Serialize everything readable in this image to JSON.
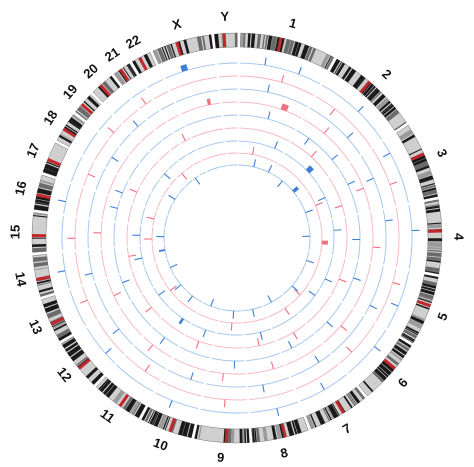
{
  "chart_data": {
    "type": "circos",
    "chromosomes": [
      {
        "name": "1",
        "size": 249
      },
      {
        "name": "2",
        "size": 243
      },
      {
        "name": "3",
        "size": 198
      },
      {
        "name": "4",
        "size": 191
      },
      {
        "name": "5",
        "size": 181
      },
      {
        "name": "6",
        "size": 171
      },
      {
        "name": "7",
        "size": 159
      },
      {
        "name": "8",
        "size": 146
      },
      {
        "name": "9",
        "size": 141
      },
      {
        "name": "10",
        "size": 136
      },
      {
        "name": "11",
        "size": 135
      },
      {
        "name": "12",
        "size": 134
      },
      {
        "name": "13",
        "size": 115
      },
      {
        "name": "14",
        "size": 107
      },
      {
        "name": "15",
        "size": 102
      },
      {
        "name": "16",
        "size": 90
      },
      {
        "name": "17",
        "size": 81
      },
      {
        "name": "18",
        "size": 78
      },
      {
        "name": "19",
        "size": 59
      },
      {
        "name": "20",
        "size": 63
      },
      {
        "name": "21",
        "size": 48
      },
      {
        "name": "22",
        "size": 51
      },
      {
        "name": "X",
        "size": 155
      },
      {
        "name": "Y",
        "size": 59
      }
    ],
    "tracks": [
      {
        "index": 1,
        "color": "#3f7fd6",
        "events": [
          {
            "chr": "1",
            "pos": 0.3,
            "len": 0.0,
            "dir": "up"
          },
          {
            "chr": "1",
            "pos": 0.72,
            "len": 0.0,
            "dir": "up"
          },
          {
            "chr": "2",
            "pos": 0.55,
            "len": 0.0,
            "dir": "up"
          },
          {
            "chr": "3",
            "pos": 0.2,
            "len": 0.0,
            "dir": "down"
          },
          {
            "chr": "4",
            "pos": 0.4,
            "len": 0.0,
            "dir": "up"
          },
          {
            "chr": "5",
            "pos": 0.6,
            "len": 0.0,
            "dir": "down"
          },
          {
            "chr": "6",
            "pos": 0.35,
            "len": 0.0,
            "dir": "up"
          },
          {
            "chr": "7",
            "pos": 0.5,
            "len": 0.0,
            "dir": "down"
          },
          {
            "chr": "8",
            "pos": 0.45,
            "len": 0.0,
            "dir": "up"
          },
          {
            "chr": "10",
            "pos": 0.6,
            "len": 0.0,
            "dir": "up"
          },
          {
            "chr": "12",
            "pos": 0.3,
            "len": 0.0,
            "dir": "down"
          },
          {
            "chr": "14",
            "pos": 0.5,
            "len": 0.0,
            "dir": "up"
          },
          {
            "chr": "16",
            "pos": 0.4,
            "len": 0.0,
            "dir": "up"
          },
          {
            "chr": "X",
            "pos": 0.35,
            "len": 0.12,
            "dir": "up"
          }
        ]
      },
      {
        "index": 2,
        "color": "#f07080",
        "events": [
          {
            "chr": "1",
            "pos": 0.55,
            "len": 0.0,
            "dir": "up"
          },
          {
            "chr": "2",
            "pos": 0.3,
            "len": 0.0,
            "dir": "down"
          },
          {
            "chr": "3",
            "pos": 0.65,
            "len": 0.0,
            "dir": "up"
          },
          {
            "chr": "5",
            "pos": 0.25,
            "len": 0.0,
            "dir": "up"
          },
          {
            "chr": "6",
            "pos": 0.7,
            "len": 0.0,
            "dir": "down"
          },
          {
            "chr": "9",
            "pos": 0.5,
            "len": 0.0,
            "dir": "up"
          },
          {
            "chr": "11",
            "pos": 0.4,
            "len": 0.0,
            "dir": "down"
          },
          {
            "chr": "13",
            "pos": 0.6,
            "len": 0.0,
            "dir": "up"
          },
          {
            "chr": "15",
            "pos": 0.35,
            "len": 0.0,
            "dir": "up"
          },
          {
            "chr": "17",
            "pos": 0.5,
            "len": 0.0,
            "dir": "down"
          },
          {
            "chr": "19",
            "pos": 0.4,
            "len": 0.0,
            "dir": "up"
          },
          {
            "chr": "21",
            "pos": 0.5,
            "len": 0.0,
            "dir": "up"
          }
        ]
      },
      {
        "index": 3,
        "color": "#3f7fd6",
        "events": [
          {
            "chr": "1",
            "pos": 0.4,
            "len": 0.0,
            "dir": "up"
          },
          {
            "chr": "2",
            "pos": 0.7,
            "len": 0.0,
            "dir": "up"
          },
          {
            "chr": "3",
            "pos": 0.45,
            "len": 0.0,
            "dir": "down"
          },
          {
            "chr": "4",
            "pos": 0.2,
            "len": 0.0,
            "dir": "up"
          },
          {
            "chr": "5",
            "pos": 0.8,
            "len": 0.0,
            "dir": "up"
          },
          {
            "chr": "7",
            "pos": 0.3,
            "len": 0.0,
            "dir": "down"
          },
          {
            "chr": "8",
            "pos": 0.65,
            "len": 0.0,
            "dir": "up"
          },
          {
            "chr": "10",
            "pos": 0.35,
            "len": 0.0,
            "dir": "down"
          },
          {
            "chr": "12",
            "pos": 0.55,
            "len": 0.0,
            "dir": "up"
          },
          {
            "chr": "14",
            "pos": 0.25,
            "len": 0.0,
            "dir": "up"
          },
          {
            "chr": "18",
            "pos": 0.5,
            "len": 0.0,
            "dir": "down"
          },
          {
            "chr": "20",
            "pos": 0.45,
            "len": 0.0,
            "dir": "up"
          }
        ]
      },
      {
        "index": 4,
        "color": "#f07080",
        "events": [
          {
            "chr": "1",
            "pos": 0.65,
            "len": 0.1,
            "dir": "up"
          },
          {
            "chr": "2",
            "pos": 0.4,
            "len": 0.0,
            "dir": "up"
          },
          {
            "chr": "3",
            "pos": 0.55,
            "len": 0.0,
            "dir": "down"
          },
          {
            "chr": "4",
            "pos": 0.7,
            "len": 0.0,
            "dir": "up"
          },
          {
            "chr": "6",
            "pos": 0.45,
            "len": 0.0,
            "dir": "up"
          },
          {
            "chr": "8",
            "pos": 0.3,
            "len": 0.0,
            "dir": "down"
          },
          {
            "chr": "9",
            "pos": 0.6,
            "len": 0.0,
            "dir": "up"
          },
          {
            "chr": "11",
            "pos": 0.65,
            "len": 0.0,
            "dir": "up"
          },
          {
            "chr": "13",
            "pos": 0.4,
            "len": 0.0,
            "dir": "down"
          },
          {
            "chr": "15",
            "pos": 0.55,
            "len": 0.0,
            "dir": "up"
          },
          {
            "chr": "X",
            "pos": 0.7,
            "len": 0.08,
            "dir": "up"
          }
        ]
      },
      {
        "index": 5,
        "color": "#3f7fd6",
        "events": [
          {
            "chr": "1",
            "pos": 0.5,
            "len": 0.0,
            "dir": "up"
          },
          {
            "chr": "2",
            "pos": 0.25,
            "len": 0.0,
            "dir": "down"
          },
          {
            "chr": "2",
            "pos": 0.8,
            "len": 0.0,
            "dir": "up"
          },
          {
            "chr": "3",
            "pos": 0.35,
            "len": 0.0,
            "dir": "up"
          },
          {
            "chr": "4",
            "pos": 0.55,
            "len": 0.0,
            "dir": "down"
          },
          {
            "chr": "5",
            "pos": 0.4,
            "len": 0.0,
            "dir": "up"
          },
          {
            "chr": "6",
            "pos": 0.6,
            "len": 0.0,
            "dir": "up"
          },
          {
            "chr": "7",
            "pos": 0.7,
            "len": 0.0,
            "dir": "down"
          },
          {
            "chr": "9",
            "pos": 0.3,
            "len": 0.0,
            "dir": "up"
          },
          {
            "chr": "11",
            "pos": 0.5,
            "len": 0.0,
            "dir": "up"
          },
          {
            "chr": "13",
            "pos": 0.7,
            "len": 0.0,
            "dir": "down"
          },
          {
            "chr": "16",
            "pos": 0.6,
            "len": 0.0,
            "dir": "up"
          },
          {
            "chr": "17",
            "pos": 0.3,
            "len": 0.0,
            "dir": "up"
          }
        ]
      },
      {
        "index": 6,
        "color": "#f07080",
        "events": [
          {
            "chr": "2",
            "pos": 0.5,
            "len": 0.0,
            "dir": "up"
          },
          {
            "chr": "3",
            "pos": 0.75,
            "len": 0.0,
            "dir": "down"
          },
          {
            "chr": "5",
            "pos": 0.55,
            "len": 0.0,
            "dir": "up"
          },
          {
            "chr": "7",
            "pos": 0.45,
            "len": 0.0,
            "dir": "up"
          },
          {
            "chr": "8",
            "pos": 0.55,
            "len": 0.0,
            "dir": "down"
          },
          {
            "chr": "10",
            "pos": 0.5,
            "len": 0.0,
            "dir": "up"
          },
          {
            "chr": "12",
            "pos": 0.45,
            "len": 0.0,
            "dir": "up"
          },
          {
            "chr": "14",
            "pos": 0.6,
            "len": 0.0,
            "dir": "down"
          },
          {
            "chr": "17",
            "pos": 0.65,
            "len": 0.0,
            "dir": "up"
          },
          {
            "chr": "22",
            "pos": 0.5,
            "len": 0.0,
            "dir": "up"
          }
        ]
      },
      {
        "index": 7,
        "color": "#3f7fd6",
        "events": [
          {
            "chr": "1",
            "pos": 0.8,
            "len": 0.0,
            "dir": "up"
          },
          {
            "chr": "2",
            "pos": 0.6,
            "len": 0.12,
            "dir": "up"
          },
          {
            "chr": "3",
            "pos": 0.4,
            "len": 0.0,
            "dir": "down"
          },
          {
            "chr": "4",
            "pos": 0.3,
            "len": 0.0,
            "dir": "up"
          },
          {
            "chr": "5",
            "pos": 0.7,
            "len": 0.0,
            "dir": "up"
          },
          {
            "chr": "6",
            "pos": 0.25,
            "len": 0.0,
            "dir": "down"
          },
          {
            "chr": "8",
            "pos": 0.4,
            "len": 0.0,
            "dir": "up"
          },
          {
            "chr": "10",
            "pos": 0.4,
            "len": 0.0,
            "dir": "up"
          },
          {
            "chr": "11",
            "pos": 0.3,
            "len": 0.1,
            "dir": "up"
          },
          {
            "chr": "12",
            "pos": 0.65,
            "len": 0.0,
            "dir": "down"
          },
          {
            "chr": "14",
            "pos": 0.4,
            "len": 0.0,
            "dir": "up"
          },
          {
            "chr": "15",
            "pos": 0.5,
            "len": 0.0,
            "dir": "up"
          },
          {
            "chr": "19",
            "pos": 0.55,
            "len": 0.0,
            "dir": "down"
          }
        ]
      },
      {
        "index": 8,
        "color": "#f07080",
        "events": [
          {
            "chr": "1",
            "pos": 0.35,
            "len": 0.0,
            "dir": "up"
          },
          {
            "chr": "3",
            "pos": 0.5,
            "len": 0.0,
            "dir": "up"
          },
          {
            "chr": "4",
            "pos": 0.6,
            "len": 0.12,
            "dir": "up"
          },
          {
            "chr": "6",
            "pos": 0.55,
            "len": 0.0,
            "dir": "down"
          },
          {
            "chr": "7",
            "pos": 0.25,
            "len": 0.0,
            "dir": "up"
          },
          {
            "chr": "9",
            "pos": 0.45,
            "len": 0.0,
            "dir": "up"
          },
          {
            "chr": "12",
            "pos": 0.5,
            "len": 0.0,
            "dir": "down"
          },
          {
            "chr": "15",
            "pos": 0.3,
            "len": 0.0,
            "dir": "up"
          },
          {
            "chr": "16",
            "pos": 0.5,
            "len": 0.0,
            "dir": "up"
          },
          {
            "chr": "20",
            "pos": 0.6,
            "len": 0.0,
            "dir": "down"
          }
        ]
      },
      {
        "index": 9,
        "color": "#3f7fd6",
        "events": [
          {
            "chr": "1",
            "pos": 0.45,
            "len": 0.0,
            "dir": "up"
          },
          {
            "chr": "1",
            "pos": 0.9,
            "len": 0.0,
            "dir": "up"
          },
          {
            "chr": "2",
            "pos": 0.35,
            "len": 0.0,
            "dir": "down"
          },
          {
            "chr": "2",
            "pos": 0.75,
            "len": 0.1,
            "dir": "up"
          },
          {
            "chr": "3",
            "pos": 0.6,
            "len": 0.0,
            "dir": "up"
          },
          {
            "chr": "4",
            "pos": 0.45,
            "len": 0.0,
            "dir": "down"
          },
          {
            "chr": "5",
            "pos": 0.35,
            "len": 0.0,
            "dir": "up"
          },
          {
            "chr": "6",
            "pos": 0.5,
            "len": 0.0,
            "dir": "up"
          },
          {
            "chr": "7",
            "pos": 0.6,
            "len": 0.0,
            "dir": "down"
          },
          {
            "chr": "8",
            "pos": 0.5,
            "len": 0.0,
            "dir": "up"
          },
          {
            "chr": "9",
            "pos": 0.4,
            "len": 0.0,
            "dir": "up"
          },
          {
            "chr": "10",
            "pos": 0.55,
            "len": 0.0,
            "dir": "down"
          },
          {
            "chr": "11",
            "pos": 0.6,
            "len": 0.0,
            "dir": "up"
          },
          {
            "chr": "12",
            "pos": 0.4,
            "len": 0.0,
            "dir": "up"
          },
          {
            "chr": "13",
            "pos": 0.5,
            "len": 0.0,
            "dir": "down"
          },
          {
            "chr": "14",
            "pos": 0.55,
            "len": 0.12,
            "dir": "up"
          },
          {
            "chr": "15",
            "pos": 0.45,
            "len": 0.0,
            "dir": "up"
          },
          {
            "chr": "18",
            "pos": 0.4,
            "len": 0.0,
            "dir": "up"
          },
          {
            "chr": "21",
            "pos": 0.4,
            "len": 0.0,
            "dir": "down"
          }
        ]
      }
    ],
    "colors": {
      "ideogram_dark": "#1a1a1a",
      "ideogram_light": "#cfcfcf",
      "centromere": "#c0282d",
      "track_blue": "#3f7fd6",
      "track_red": "#f07080",
      "track_blue_line": "#9ec3ee",
      "track_red_line": "#f7b3bd"
    }
  }
}
